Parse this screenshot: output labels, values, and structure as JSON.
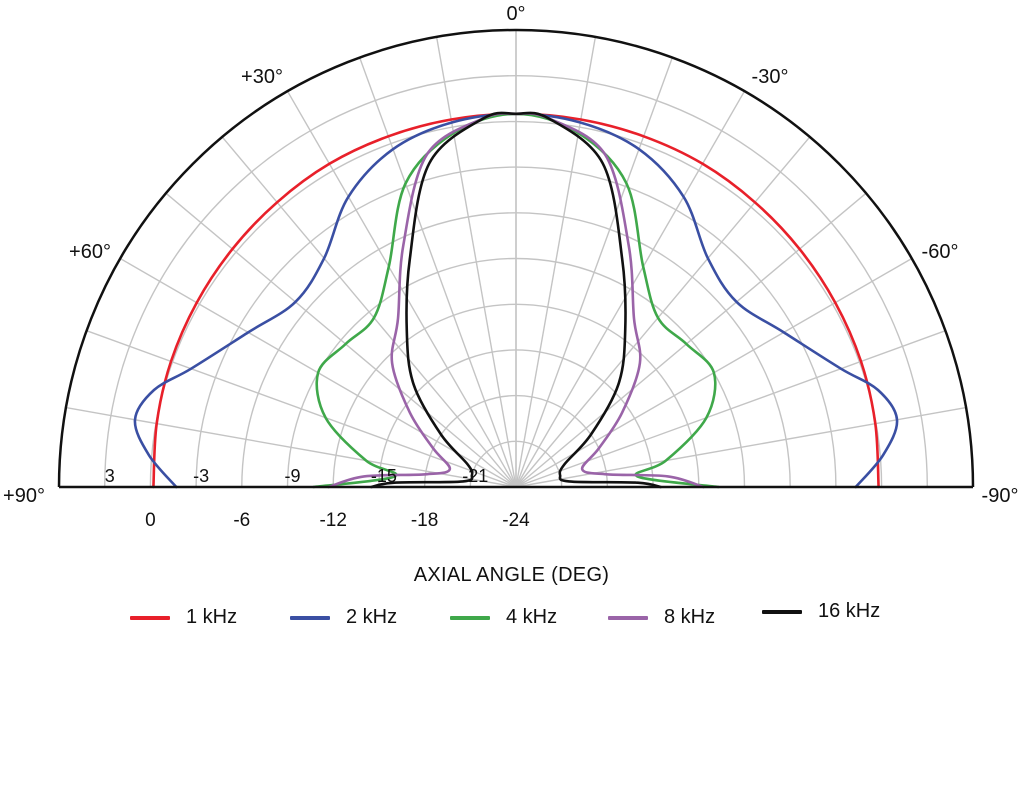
{
  "chart_data": {
    "type": "polar",
    "title": "",
    "xlabel": "AXIAL ANGLE (DEG)",
    "angle_labels": [
      "0°",
      "+30°",
      "-30°",
      "+60°",
      "-60°",
      "+90°",
      "-90°"
    ],
    "angles_deg": [
      0,
      30,
      -30,
      60,
      -60,
      90,
      -90
    ],
    "radial_range_db": [
      -24,
      6
    ],
    "radial_ticks": [
      -24,
      -18,
      -12,
      -6,
      0
    ],
    "radial_tick_labels": [
      "-24",
      "-18",
      "-12",
      "-6",
      "0"
    ],
    "ring_labels": [
      "3",
      "-3",
      "-9",
      "-15",
      "-21"
    ],
    "ring_values_db": [
      3,
      -3,
      -9,
      -15,
      -21
    ],
    "grid": true,
    "legend_position": "bottom",
    "series": [
      {
        "name": "1 kHz",
        "color": "#e8202a",
        "angles": [
          -90,
          -80,
          -70,
          -60,
          -50,
          -40,
          -30,
          -20,
          -10,
          0,
          10,
          20,
          30,
          40,
          50,
          60,
          70,
          80,
          90
        ],
        "values": [
          -0.2,
          -0.05,
          0.1,
          0.2,
          0.3,
          0.4,
          0.5,
          0.5,
          0.5,
          0.5,
          0.5,
          0.5,
          0.5,
          0.4,
          0.3,
          0.2,
          0.1,
          -0.05,
          -0.2
        ]
      },
      {
        "name": "2 kHz",
        "color": "#3a4fa3",
        "angles": [
          -90,
          -85,
          -80,
          -75,
          -70,
          -60,
          -50,
          -40,
          -30,
          -20,
          -10,
          0,
          10,
          20,
          30,
          40,
          50,
          60,
          70,
          75,
          80,
          85,
          90
        ],
        "values": [
          -1.7,
          0.2,
          1.4,
          0.6,
          -1.3,
          -3.7,
          -5.1,
          -4.4,
          -2.0,
          -0.4,
          0.3,
          0.5,
          0.3,
          -0.4,
          -2.0,
          -4.4,
          -5.1,
          -3.7,
          -1.3,
          0.6,
          1.4,
          0.2,
          -1.7
        ]
      },
      {
        "name": "4 kHz",
        "color": "#3fa84a",
        "angles": [
          -90,
          -85,
          -80,
          -70,
          -60,
          -50,
          -40,
          -30,
          -20,
          -10,
          0,
          10,
          20,
          30,
          40,
          50,
          60,
          70,
          80,
          85,
          90
        ],
        "values": [
          -10.7,
          -16.0,
          -14.0,
          -10.7,
          -9.0,
          -9.4,
          -9.5,
          -7.3,
          -2.8,
          -0.4,
          0.5,
          -0.4,
          -2.8,
          -7.3,
          -9.5,
          -9.4,
          -9.0,
          -10.7,
          -14.0,
          -16.0,
          -10.7
        ]
      },
      {
        "name": "8 kHz",
        "color": "#9a64a8",
        "angles": [
          -90,
          -86,
          -82,
          -75,
          -65,
          -55,
          -45,
          -35,
          -25,
          -15,
          -5,
          0,
          5,
          15,
          25,
          35,
          45,
          55,
          65,
          75,
          82,
          86,
          90
        ],
        "values": [
          -11.7,
          -14.0,
          -18.0,
          -19.5,
          -18.0,
          -15.5,
          -12.5,
          -10.5,
          -6.5,
          -1.4,
          0.3,
          0.5,
          0.3,
          -1.4,
          -6.5,
          -10.5,
          -12.5,
          -15.5,
          -18.0,
          -19.5,
          -18.0,
          -14.0,
          -11.7
        ]
      },
      {
        "name": "16 kHz",
        "color": "#111111",
        "angles": [
          -90,
          -88,
          -84,
          -75,
          -65,
          -55,
          -45,
          -35,
          -25,
          -15,
          -5,
          0,
          5,
          15,
          25,
          35,
          45,
          55,
          65,
          75,
          84,
          88,
          90
        ],
        "values": [
          -14.5,
          -16.0,
          -20.5,
          -21.0,
          -20.5,
          -18.0,
          -14.5,
          -11.5,
          -7.5,
          -2.0,
          0.3,
          0.5,
          0.3,
          -2.0,
          -7.5,
          -11.5,
          -14.5,
          -18.0,
          -20.5,
          -21.0,
          -20.5,
          -16.0,
          -14.5
        ]
      }
    ]
  },
  "legend": {
    "items": [
      {
        "label": "1 kHz",
        "color": "#e8202a"
      },
      {
        "label": "2 kHz",
        "color": "#3a4fa3"
      },
      {
        "label": "4 kHz",
        "color": "#3fa84a"
      },
      {
        "label": "8 kHz",
        "color": "#9a64a8"
      },
      {
        "label": "16 kHz",
        "color": "#111111"
      }
    ]
  }
}
